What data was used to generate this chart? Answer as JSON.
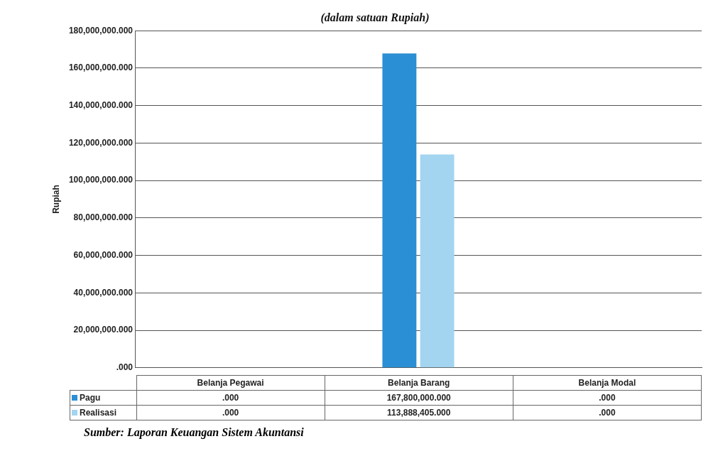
{
  "chart_data": {
    "type": "bar",
    "title": "(dalam satuan Rupiah)",
    "ylabel": "Rupiah",
    "categories": [
      "Belanja Pegawai",
      "Belanja Barang",
      "Belanja Modal"
    ],
    "series": [
      {
        "name": "Pagu",
        "color": "#2a8fd4",
        "values": [
          0,
          167800000,
          0
        ],
        "value_labels": [
          ".000",
          "167,800,000.000",
          ".000"
        ]
      },
      {
        "name": "Realisasi",
        "color": "#a3d4f0",
        "values": [
          0,
          113888405,
          0
        ],
        "value_labels": [
          ".000",
          "113,888,405.000",
          ".000"
        ]
      }
    ],
    "ylim": [
      0,
      180000000
    ],
    "yticks": [
      {
        "value": 0,
        "label": ".000"
      },
      {
        "value": 20000000,
        "label": "20,000,000.000"
      },
      {
        "value": 40000000,
        "label": "40,000,000.000"
      },
      {
        "value": 60000000,
        "label": "60,000,000.000"
      },
      {
        "value": 80000000,
        "label": "80,000,000.000"
      },
      {
        "value": 100000000,
        "label": "100,000,000.000"
      },
      {
        "value": 120000000,
        "label": "120,000,000.000"
      },
      {
        "value": 140000000,
        "label": "140,000,000.000"
      },
      {
        "value": 160000000,
        "label": "160,000,000.000"
      },
      {
        "value": 180000000,
        "label": "180,000,000.000"
      }
    ],
    "grid": "y",
    "legend": "bottom",
    "annotations": [
      "Sumber: Laporan Keuangan Sistem Akuntansi"
    ]
  }
}
